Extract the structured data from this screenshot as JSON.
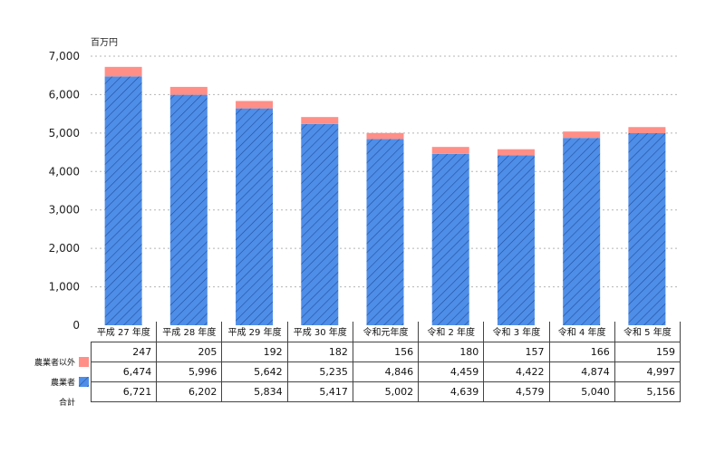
{
  "unit_label": "百万円",
  "chart_data": {
    "type": "bar",
    "stacked": true,
    "categories": [
      "平成 27 年度",
      "平成 28 年度",
      "平成 29 年度",
      "平成 30 年度",
      "令和元年度",
      "令和 2 年度",
      "令和 3 年度",
      "令和 4 年度",
      "令和 5 年度"
    ],
    "series": [
      {
        "name": "農業者",
        "values": [
          6474,
          5996,
          5642,
          5235,
          4846,
          4459,
          4422,
          4874,
          4997
        ],
        "color": "#4f8ee8",
        "pattern": "diagonal-hatch"
      },
      {
        "name": "農業者以外",
        "values": [
          247,
          205,
          192,
          182,
          156,
          180,
          157,
          166,
          159
        ],
        "color": "#ff8f87"
      }
    ],
    "total_label": "合計",
    "totals": [
      "6,721",
      "6,202",
      "5,834",
      "5,417",
      "5,002",
      "4,639",
      "4,579",
      "5,040",
      "5,156"
    ],
    "table_rows": [
      {
        "label": "農業者以外",
        "values": [
          "247",
          "205",
          "192",
          "182",
          "156",
          "180",
          "157",
          "166",
          "159"
        ]
      },
      {
        "label": "農業者",
        "values": [
          "6,474",
          "5,996",
          "5,642",
          "5,235",
          "4,846",
          "4,459",
          "4,422",
          "4,874",
          "4,997"
        ]
      }
    ],
    "yticks": [
      "0",
      "1,000",
      "2,000",
      "3,000",
      "4,000",
      "5,000",
      "6,000",
      "7,000"
    ],
    "ylim": [
      0,
      7000
    ],
    "grid": true
  }
}
